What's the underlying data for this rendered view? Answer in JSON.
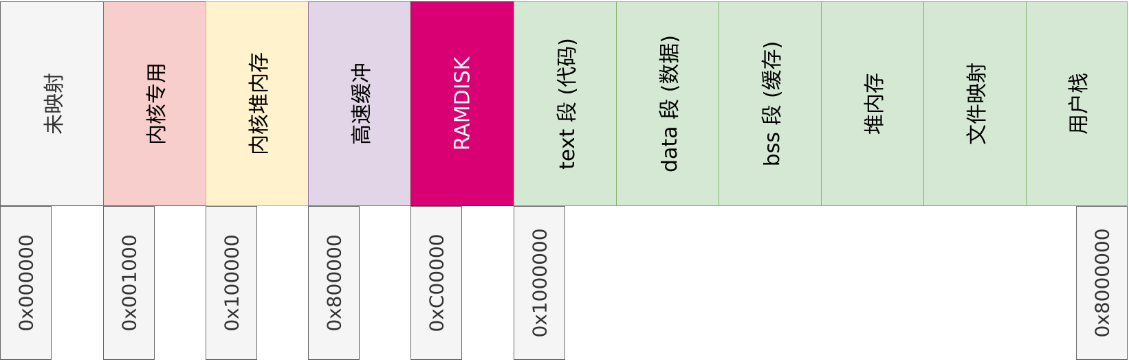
{
  "segments": [
    {
      "label": "未映射",
      "fill": "#f5f5f5",
      "stroke": "#666666",
      "text_color": "#333333"
    },
    {
      "label": "内核专用",
      "fill": "#f8cecc",
      "stroke": "#b85450",
      "text_color": "#000000"
    },
    {
      "label": "内核堆内存",
      "fill": "#fff2cc",
      "stroke": "#d6b656",
      "text_color": "#000000"
    },
    {
      "label": "高速缓冲",
      "fill": "#e1d5e7",
      "stroke": "#9673a6",
      "text_color": "#000000"
    },
    {
      "label": "RAMDISK",
      "fill": "#d80073",
      "stroke": "#a50040",
      "text_color": "#ffffff"
    },
    {
      "label": "text 段 (代码)",
      "fill": "#d5e8d4",
      "stroke": "#82b366",
      "text_color": "#000000"
    },
    {
      "label": "data 段 (数据)",
      "fill": "#d5e8d4",
      "stroke": "#82b366",
      "text_color": "#000000"
    },
    {
      "label": "bss 段 (缓存)",
      "fill": "#d5e8d4",
      "stroke": "#82b366",
      "text_color": "#000000"
    },
    {
      "label": "堆内存",
      "fill": "#d5e8d4",
      "stroke": "#82b366",
      "text_color": "#000000"
    },
    {
      "label": "文件映射",
      "fill": "#d5e8d4",
      "stroke": "#82b366",
      "text_color": "#000000"
    },
    {
      "label": "用户栈",
      "fill": "#d5e8d4",
      "stroke": "#82b366",
      "text_color": "#000000"
    }
  ],
  "addresses": [
    {
      "label": "0x000000"
    },
    {
      "label": "0x001000"
    },
    {
      "label": "0x100000"
    },
    {
      "label": "0x800000"
    },
    {
      "label": "0xC00000"
    },
    {
      "label": "0x1000000"
    },
    {
      "label": "0x8000000"
    }
  ]
}
